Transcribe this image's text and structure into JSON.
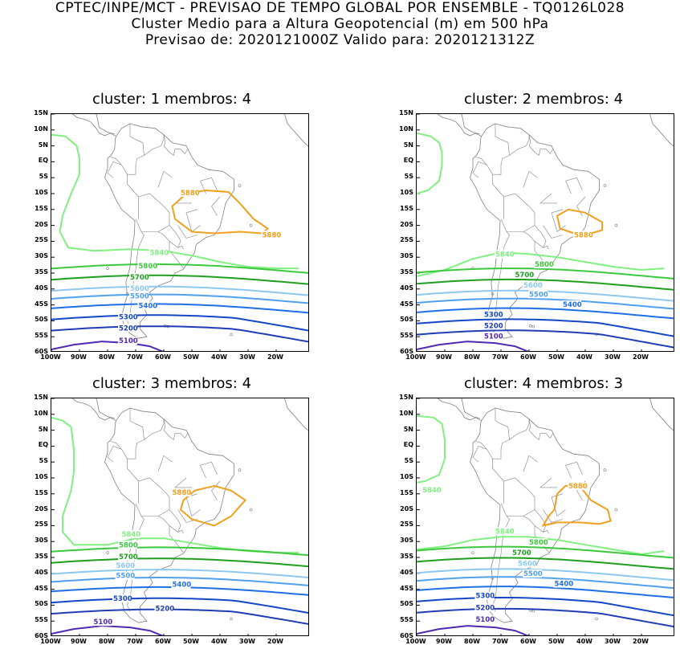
{
  "header": {
    "line1": "CPTEC/INPE/MCT - PREVISAO DE TEMPO GLOBAL POR ENSEMBLE - TQ0126L028",
    "line2": "Cluster Medio para a Altura Geopotencial (m) em 500 hPa",
    "line3": "Previsao de: 2020121000Z    Valido para: 2020121312Z"
  },
  "axes": {
    "lat_labels": [
      "15N",
      "10N",
      "5N",
      "EQ",
      "5S",
      "10S",
      "15S",
      "20S",
      "25S",
      "30S",
      "35S",
      "40S",
      "45S",
      "50S",
      "55S",
      "60S"
    ],
    "lon_labels": [
      "100W",
      "90W",
      "80W",
      "70W",
      "60W",
      "50W",
      "40W",
      "30W",
      "20W"
    ]
  },
  "colors": {
    "c5840": "#80f080",
    "c5800": "#3cc83c",
    "c5700": "#1ea01e",
    "c5600": "#8cc8f0",
    "c5500": "#50a0f0",
    "c5400": "#1e6ee6",
    "c5300": "#1446c8",
    "c5200": "#1e3cb4",
    "c5100": "#5028b4",
    "c5880": "#f0a01e",
    "coast": "#808080"
  },
  "panels": [
    {
      "title": "cluster: 1   membros: 4",
      "labels": {
        "c5880a": "5880",
        "c5880b": "5880",
        "c5840": "5840",
        "c5800": "5800",
        "c5700": "5700",
        "c5600": "5600",
        "c5500": "5500",
        "c5400": "5400",
        "c5300": "5300",
        "c5200": "5200",
        "c5100": "5100"
      }
    },
    {
      "title": "cluster: 2   membros: 4",
      "labels": {
        "c5880a": "5880",
        "c5880b": "",
        "c5840": "5840",
        "c5800": "5800",
        "c5700": "5700",
        "c5600": "5600",
        "c5500": "5500",
        "c5400": "5400",
        "c5300": "5300",
        "c5200": "5200",
        "c5100": "5100"
      }
    },
    {
      "title": "cluster: 3   membros: 4",
      "labels": {
        "c5880a": "5880",
        "c5880b": "",
        "c5840": "5840",
        "c5800": "5800",
        "c5700": "5700",
        "c5600": "5600",
        "c5500": "5500",
        "c5400": "5400",
        "c5300": "5300",
        "c5200": "5200",
        "c5100": "5100"
      }
    },
    {
      "title": "cluster: 4   membros: 3",
      "labels": {
        "c5880a": "5880",
        "c5880b": "5840",
        "c5840": "5840",
        "c5800": "5800",
        "c5700": "5700",
        "c5600": "5600",
        "c5500": "5500",
        "c5400": "5400",
        "c5300": "5300",
        "c5200": "5200",
        "c5100": "5100"
      }
    }
  ]
}
